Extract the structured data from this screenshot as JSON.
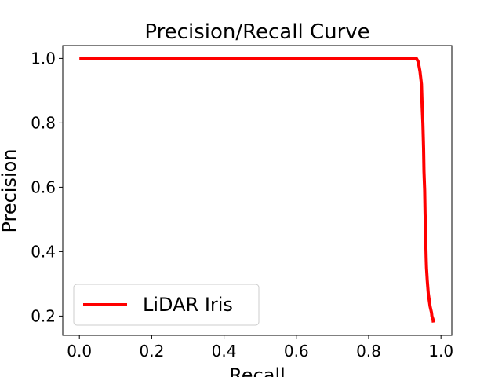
{
  "chart_data": {
    "type": "line",
    "title": "Precision/Recall Curve",
    "xlabel": "Recall",
    "ylabel": "Precision",
    "xlim": [
      -0.046,
      1.03
    ],
    "ylim": [
      0.14,
      1.04
    ],
    "xticks": [
      0.0,
      0.2,
      0.4,
      0.6,
      0.8,
      1.0
    ],
    "xtick_labels": [
      "0.0",
      "0.2",
      "0.4",
      "0.6",
      "0.8",
      "1.0"
    ],
    "yticks": [
      0.2,
      0.4,
      0.6,
      0.8,
      1.0
    ],
    "ytick_labels": [
      "0.2",
      "0.4",
      "0.6",
      "0.8",
      "1.0"
    ],
    "grid": false,
    "legend_position": "lower-left",
    "series": [
      {
        "name": "LiDAR Iris",
        "color": "#ff0000",
        "x": [
          0.0,
          0.1,
          0.3,
          0.5,
          0.7,
          0.9,
          0.932,
          0.937,
          0.942,
          0.946,
          0.948,
          0.95,
          0.952,
          0.953,
          0.955,
          0.956,
          0.957,
          0.958,
          0.959,
          0.96,
          0.962,
          0.965,
          0.97,
          0.974,
          0.975,
          0.978,
          0.979
        ],
        "y": [
          1.0,
          1.0,
          1.0,
          1.0,
          1.0,
          1.0,
          1.0,
          0.99,
          0.96,
          0.92,
          0.85,
          0.8,
          0.72,
          0.65,
          0.59,
          0.52,
          0.48,
          0.43,
          0.38,
          0.35,
          0.31,
          0.27,
          0.23,
          0.21,
          0.2,
          0.19,
          0.18
        ]
      }
    ]
  }
}
